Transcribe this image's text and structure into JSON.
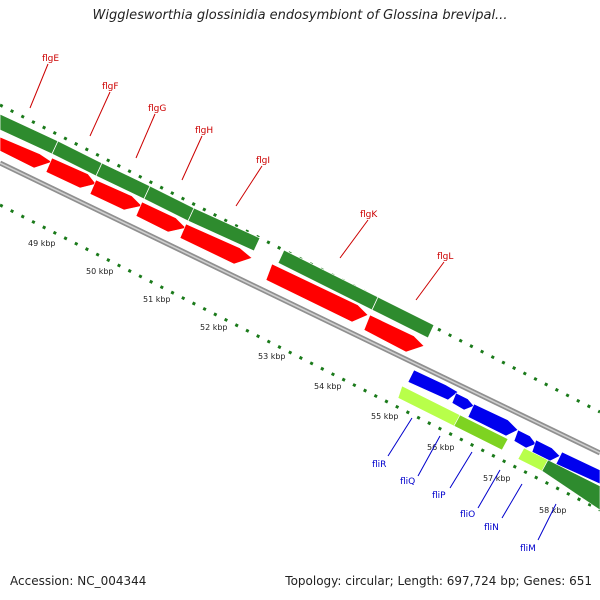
{
  "title": "Wigglesworthia glossinidia endosymbiont of Glossina brevipal...",
  "footer": {
    "accession": "Accession: NC_004344",
    "summary": "Topology: circular; Length: 697,724 bp; Genes: 651"
  },
  "colors": {
    "cds_top": "#2e8b2e",
    "cds_red": "#ff0000",
    "cds_blue": "#0000ee",
    "cds_lightgreen": "#b8ff4a",
    "tick": "#1a7a1a",
    "backbone": "#909090",
    "label_red": "#cc0000",
    "label_blue": "#0000cc"
  },
  "kbp_ticks": [
    "49 kbp",
    "50 kbp",
    "51 kbp",
    "52 kbp",
    "53 kbp",
    "54 kbp",
    "55 kbp",
    "56 kbp",
    "57 kbp",
    "58 kbp"
  ],
  "genes_top": [
    "flgE",
    "flgF",
    "flgG",
    "flgH",
    "flgI",
    "flgK",
    "flgL"
  ],
  "genes_bottom": [
    "fliR",
    "fliQ",
    "fliP",
    "fliO",
    "fliN",
    "fliM"
  ]
}
